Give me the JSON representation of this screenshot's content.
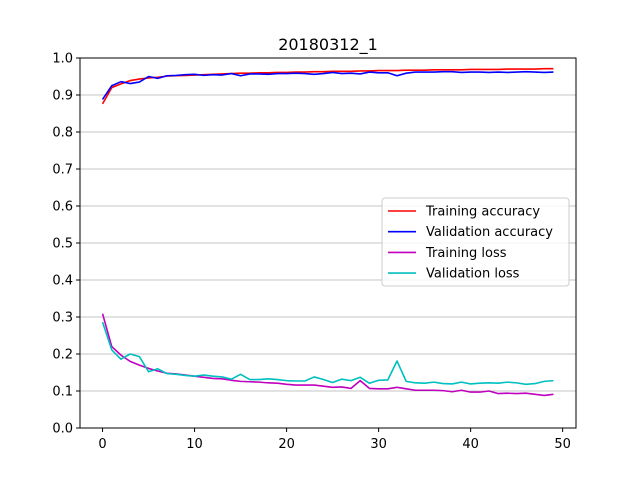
{
  "chart_data": {
    "type": "line",
    "title": "20180312_1",
    "xlabel": "",
    "ylabel": "",
    "xlim": [
      -2.45,
      51.45
    ],
    "ylim": [
      0.0,
      1.0
    ],
    "xticks": [
      0,
      10,
      20,
      30,
      40,
      50
    ],
    "yticks": [
      0.0,
      0.1,
      0.2,
      0.3,
      0.4,
      0.5,
      0.6,
      0.7,
      0.8,
      0.9,
      1.0
    ],
    "xtick_labels": [
      "0",
      "10",
      "20",
      "30",
      "40",
      "50"
    ],
    "ytick_labels": [
      "0.0",
      "0.1",
      "0.2",
      "0.3",
      "0.4",
      "0.5",
      "0.6",
      "0.7",
      "0.8",
      "0.9",
      "1.0"
    ],
    "grid": "horizontal",
    "legend_position": "center-right",
    "x": [
      0,
      1,
      2,
      3,
      4,
      5,
      6,
      7,
      8,
      9,
      10,
      11,
      12,
      13,
      14,
      15,
      16,
      17,
      18,
      19,
      20,
      21,
      22,
      23,
      24,
      25,
      26,
      27,
      28,
      29,
      30,
      31,
      32,
      33,
      34,
      35,
      36,
      37,
      38,
      39,
      40,
      41,
      42,
      43,
      44,
      45,
      46,
      47,
      48,
      49
    ],
    "series": [
      {
        "name": "Training accuracy",
        "color": "#ff0000",
        "values": [
          0.876,
          0.92,
          0.93,
          0.939,
          0.943,
          0.946,
          0.948,
          0.951,
          0.952,
          0.953,
          0.954,
          0.955,
          0.956,
          0.957,
          0.958,
          0.959,
          0.959,
          0.96,
          0.96,
          0.961,
          0.961,
          0.962,
          0.962,
          0.963,
          0.963,
          0.964,
          0.964,
          0.964,
          0.965,
          0.965,
          0.966,
          0.966,
          0.966,
          0.967,
          0.967,
          0.967,
          0.968,
          0.968,
          0.968,
          0.968,
          0.969,
          0.969,
          0.969,
          0.969,
          0.97,
          0.97,
          0.97,
          0.97,
          0.971,
          0.971
        ]
      },
      {
        "name": "Validation accuracy",
        "color": "#0000ff",
        "values": [
          0.888,
          0.925,
          0.936,
          0.931,
          0.935,
          0.95,
          0.945,
          0.952,
          0.953,
          0.955,
          0.956,
          0.953,
          0.955,
          0.954,
          0.958,
          0.952,
          0.957,
          0.957,
          0.956,
          0.958,
          0.958,
          0.959,
          0.958,
          0.956,
          0.958,
          0.961,
          0.958,
          0.959,
          0.957,
          0.962,
          0.96,
          0.96,
          0.952,
          0.959,
          0.962,
          0.962,
          0.962,
          0.963,
          0.963,
          0.961,
          0.962,
          0.962,
          0.961,
          0.962,
          0.961,
          0.962,
          0.963,
          0.962,
          0.961,
          0.962
        ]
      },
      {
        "name": "Training loss",
        "color": "#bf00bf",
        "values": [
          0.309,
          0.22,
          0.197,
          0.18,
          0.17,
          0.161,
          0.154,
          0.148,
          0.146,
          0.143,
          0.14,
          0.137,
          0.134,
          0.133,
          0.129,
          0.126,
          0.125,
          0.124,
          0.122,
          0.121,
          0.118,
          0.116,
          0.116,
          0.116,
          0.113,
          0.11,
          0.111,
          0.107,
          0.128,
          0.107,
          0.106,
          0.106,
          0.11,
          0.106,
          0.102,
          0.102,
          0.102,
          0.101,
          0.098,
          0.102,
          0.097,
          0.097,
          0.1,
          0.093,
          0.094,
          0.093,
          0.094,
          0.091,
          0.088,
          0.091
        ]
      },
      {
        "name": "Validation loss",
        "color": "#00bfbf",
        "values": [
          0.286,
          0.211,
          0.186,
          0.2,
          0.193,
          0.152,
          0.16,
          0.147,
          0.145,
          0.142,
          0.14,
          0.143,
          0.14,
          0.138,
          0.132,
          0.145,
          0.131,
          0.131,
          0.133,
          0.131,
          0.128,
          0.127,
          0.127,
          0.138,
          0.131,
          0.123,
          0.132,
          0.128,
          0.137,
          0.121,
          0.129,
          0.13,
          0.181,
          0.126,
          0.122,
          0.121,
          0.124,
          0.12,
          0.119,
          0.124,
          0.119,
          0.121,
          0.122,
          0.121,
          0.124,
          0.122,
          0.118,
          0.12,
          0.126,
          0.128
        ]
      }
    ]
  }
}
